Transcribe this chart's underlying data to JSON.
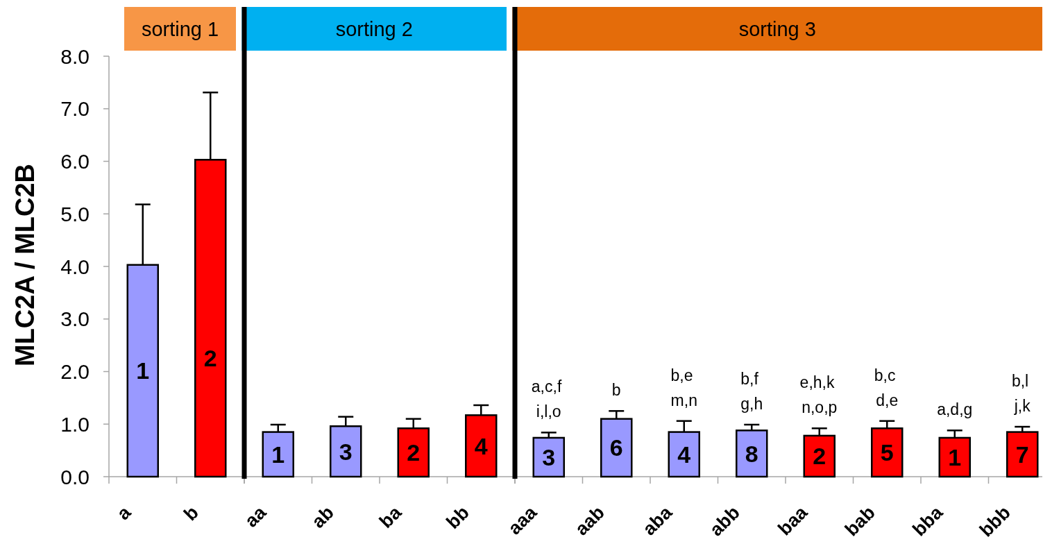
{
  "chart_data": [
    {
      "type": "bar",
      "title": "sorting 1",
      "categories": [
        "a",
        "b"
      ],
      "values": [
        4.03,
        6.03
      ],
      "colors": [
        "#9999ff",
        "#ff0000"
      ],
      "errors": [
        [
          4.03,
          5.18
        ],
        [
          6.03,
          7.31
        ]
      ],
      "ylim": [
        0,
        8
      ],
      "yticks": [
        {
          "value": 0,
          "label": "0.0"
        },
        {
          "value": 1,
          "label": "1.0"
        },
        {
          "value": 2,
          "label": "2.0"
        },
        {
          "value": 3,
          "label": "3.0"
        },
        {
          "value": 4,
          "label": "4.0"
        },
        {
          "value": 5,
          "label": "5.0"
        },
        {
          "value": 6,
          "label": "6.0"
        },
        {
          "value": 7,
          "label": "7.0"
        },
        {
          "value": 8,
          "label": "8.0"
        }
      ],
      "ylabel": "MLC2A / MLC2B",
      "annotations": [
        "1",
        "2"
      ]
    },
    {
      "type": "bar",
      "title": "sorting 2",
      "categories": [
        "aa",
        "ab",
        "ba",
        "bb"
      ],
      "values": [
        0.85,
        0.96,
        0.92,
        1.17
      ],
      "colors": [
        "#9999ff",
        "#9999ff",
        "#ff0000",
        "#ff0000"
      ],
      "errors": [
        [
          0.85,
          0.99
        ],
        [
          0.96,
          1.14
        ],
        [
          0.92,
          1.1
        ],
        [
          1.17,
          1.36
        ]
      ],
      "ylim": [
        0,
        8
      ],
      "tick_labels": "x",
      "annotations": [
        "1",
        "3",
        "2",
        "4"
      ]
    },
    {
      "type": "bar",
      "title": "sorting 3",
      "categories": [
        "aaa",
        "aab",
        "aba",
        "abb",
        "baa",
        "bab",
        "bba",
        "bbb"
      ],
      "values": [
        0.74,
        1.1,
        0.85,
        0.88,
        0.78,
        0.92,
        0.74,
        0.85
      ],
      "colors": [
        "#9999ff",
        "#9999ff",
        "#9999ff",
        "#9999ff",
        "#ff0000",
        "#ff0000",
        "#ff0000",
        "#ff0000"
      ],
      "errors": [
        [
          0.74,
          0.84
        ],
        [
          1.1,
          1.25
        ],
        [
          0.85,
          1.06
        ],
        [
          0.88,
          0.99
        ],
        [
          0.78,
          0.92
        ],
        [
          0.92,
          1.06
        ],
        [
          0.74,
          0.88
        ],
        [
          0.85,
          0.95
        ]
      ],
      "ylim": [
        0,
        8
      ],
      "tick_labels": "x",
      "annotations": [
        "3",
        "6",
        "4",
        "8",
        "2",
        "5",
        "1",
        "7",
        "a,c,f\ni,l,o",
        "b",
        "b,e\nm,n",
        "b,f\ng,h",
        "e,h,k\nn,o,p",
        "b,c\nd,e",
        "a,d,g",
        "b,l\nj,k"
      ]
    }
  ]
}
